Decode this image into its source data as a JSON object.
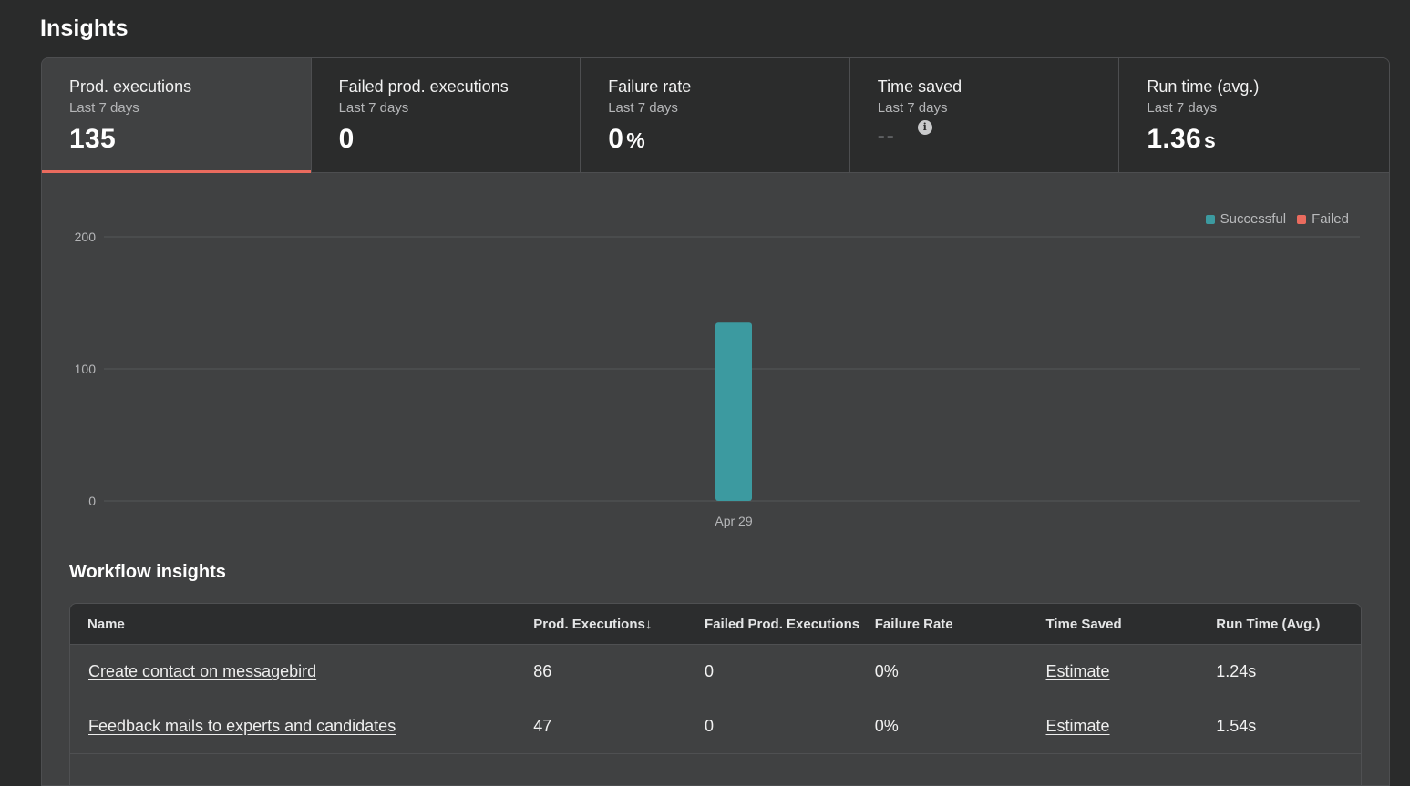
{
  "page": {
    "title": "Insights"
  },
  "tabs": [
    {
      "title": "Prod. executions",
      "period": "Last 7 days",
      "value": "135",
      "unit": ""
    },
    {
      "title": "Failed prod. executions",
      "period": "Last 7 days",
      "value": "0",
      "unit": ""
    },
    {
      "title": "Failure rate",
      "period": "Last 7 days",
      "value": "0",
      "unit": "%"
    },
    {
      "title": "Time saved",
      "period": "Last 7 days",
      "value": "--",
      "unit": ""
    },
    {
      "title": "Run time (avg.)",
      "period": "Last 7 days",
      "value": "1.36",
      "unit": "s"
    }
  ],
  "info_icon_glyph": "i",
  "chart_data": {
    "type": "bar",
    "categories": [
      "Apr 29"
    ],
    "series": [
      {
        "name": "Successful",
        "values": [
          135
        ],
        "color": "#3c9aa0"
      },
      {
        "name": "Failed",
        "values": [
          0
        ],
        "color": "#ea6b5e"
      }
    ],
    "ylim": [
      0,
      200
    ],
    "yticks": [
      0,
      100,
      200
    ],
    "grid": true,
    "legend_position": "top-right"
  },
  "workflow_insights": {
    "title": "Workflow insights",
    "columns": {
      "name": "Name",
      "prod_executions": "Prod. Executions",
      "sort_indicator": "↓",
      "failed_prod_executions": "Failed Prod. Executions",
      "failure_rate": "Failure Rate",
      "time_saved": "Time Saved",
      "run_time": "Run Time (Avg.)"
    },
    "rows": [
      {
        "name": "Create contact on messagebird",
        "prod_executions": "86",
        "failed_prod_executions": "0",
        "failure_rate": "0%",
        "time_saved": "Estimate",
        "run_time": "1.24s"
      },
      {
        "name": "Feedback mails to experts and candidates",
        "prod_executions": "47",
        "failed_prod_executions": "0",
        "failure_rate": "0%",
        "time_saved": "Estimate",
        "run_time": "1.54s"
      }
    ]
  }
}
